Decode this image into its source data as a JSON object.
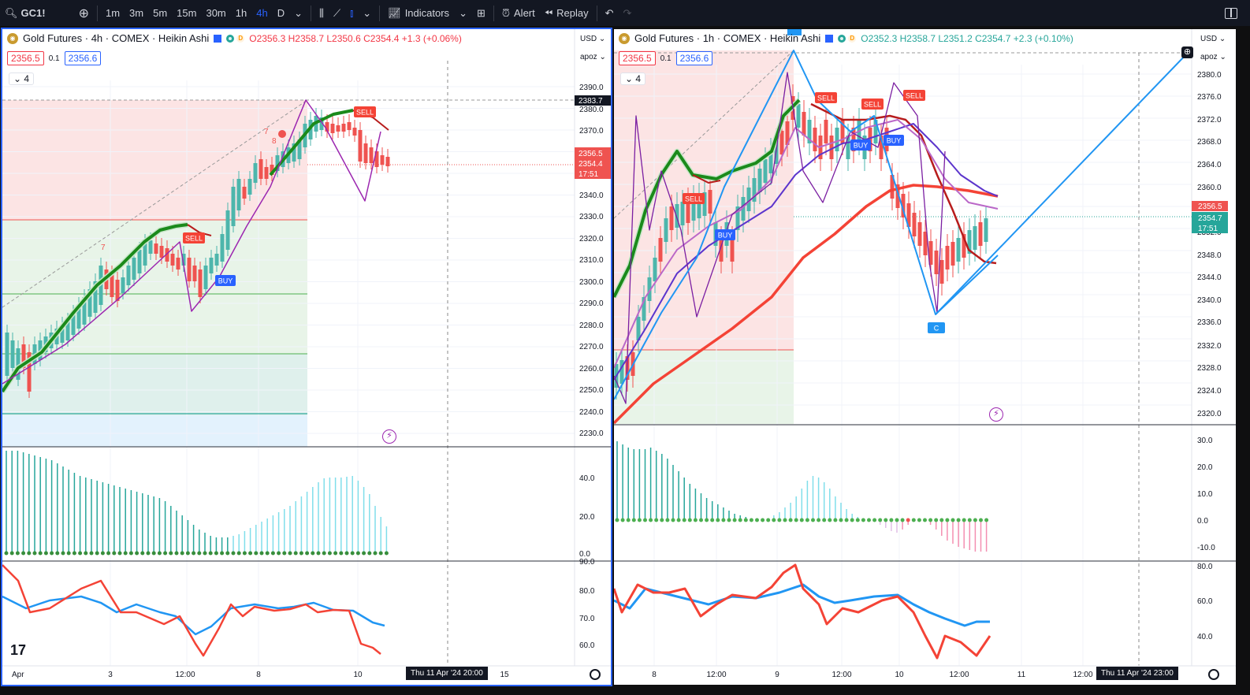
{
  "topbar": {
    "symbol": "GC1!",
    "intervals": [
      "1m",
      "3m",
      "5m",
      "15m",
      "30m",
      "1h",
      "4h",
      "D"
    ],
    "active_interval": "4h",
    "indicators": "Indicators",
    "alert": "Alert",
    "replay": "Replay"
  },
  "left": {
    "title": "Gold Futures · 4h · COMEX · Heikin Ashi",
    "o": "O2356.3",
    "h": "H2358.7",
    "l": "L2350.6",
    "c": "C2354.4 +1.3 (+0.06%)",
    "bid": "2356.5",
    "spread": "0.1",
    "ask": "2356.6",
    "collapse": "4",
    "currency": "USD",
    "scale": "apoz",
    "price_ticks": [
      "2390.0",
      "2380.0",
      "2370.0",
      "2360.0",
      "2340.0",
      "2330.0",
      "2320.0",
      "2310.0",
      "2300.0",
      "2290.0",
      "2280.0",
      "2270.0",
      "2260.0",
      "2250.0",
      "2240.0",
      "2230.0"
    ],
    "tag_high": "2383.7",
    "tag_a": "2356.5",
    "tag_b": "2354.4",
    "tag_c": "17:51",
    "osc_ticks": [
      "40.0",
      "20.0",
      "0.0"
    ],
    "rsi_ticks": [
      "90.0",
      "80.0",
      "70.0",
      "60.0"
    ],
    "time_ticks": [
      "Apr",
      "3",
      "12:00",
      "8",
      "10",
      "15"
    ],
    "crosshair_date": "Thu 11 Apr '24   20:00",
    "labels": {
      "sell1": "SELL",
      "sell2": "SELL",
      "buy1": "BUY",
      "n7a": "7",
      "n7b": "7",
      "n8": "8"
    }
  },
  "right": {
    "title": "Gold Futures · 1h · COMEX · Heikin Ashi",
    "o": "O2352.3",
    "h": "H2358.7",
    "l": "L2351.2",
    "c": "C2354.7 +2.3 (+0.10%)",
    "bid": "2356.5",
    "spread": "0.1",
    "ask": "2356.6",
    "collapse": "4",
    "currency": "USD",
    "scale": "apoz",
    "price_ticks": [
      "2380.0",
      "2376.0",
      "2372.0",
      "2368.0",
      "2364.0",
      "2360.0",
      "2352.0",
      "2348.0",
      "2344.0",
      "2340.0",
      "2336.0",
      "2332.0",
      "2328.0",
      "2324.0",
      "2320.0"
    ],
    "tag_a": "2356.5",
    "tag_b": "2354.7",
    "tag_c": "17:51",
    "osc_ticks": [
      "30.0",
      "20.0",
      "10.0",
      "0.0",
      "-10.0"
    ],
    "rsi_ticks": [
      "80.0",
      "60.0",
      "40.0"
    ],
    "time_ticks": [
      "8",
      "12:00",
      "9",
      "12:00",
      "10",
      "12:00",
      "11",
      "12:00"
    ],
    "crosshair_date": "Thu 11 Apr '24   23:00",
    "labels": {
      "sell1": "SELL",
      "sell2": "SELL",
      "sell3": "SELL",
      "sell4": "SELL",
      "buy1": "BUY",
      "buy2": "BUY",
      "buy3": "BUY",
      "c": "C"
    }
  },
  "colors": {
    "up": "#26a69a",
    "down": "#ef5350",
    "green_ma": "#1b8a1b",
    "blue": "#2196f3",
    "red": "#f23645"
  }
}
